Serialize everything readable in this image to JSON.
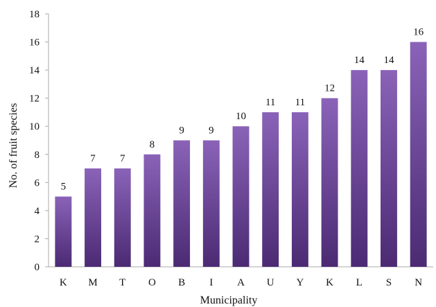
{
  "chart_data": {
    "type": "bar",
    "title": "",
    "xlabel": "Municipality",
    "ylabel": "No. of fruit species",
    "categories": [
      "K",
      "M",
      "T",
      "O",
      "B",
      "I",
      "A",
      "U",
      "Y",
      "K",
      "L",
      "S",
      "N"
    ],
    "values": [
      5,
      7,
      7,
      8,
      9,
      9,
      10,
      11,
      11,
      12,
      14,
      14,
      16
    ],
    "ylim": [
      0,
      18
    ],
    "yticks": [
      0,
      2,
      4,
      6,
      8,
      10,
      12,
      14,
      16,
      18
    ],
    "grid": false,
    "legend": "none",
    "bar_color_top": "#8a63b8",
    "bar_color_bottom": "#4b2a73"
  }
}
